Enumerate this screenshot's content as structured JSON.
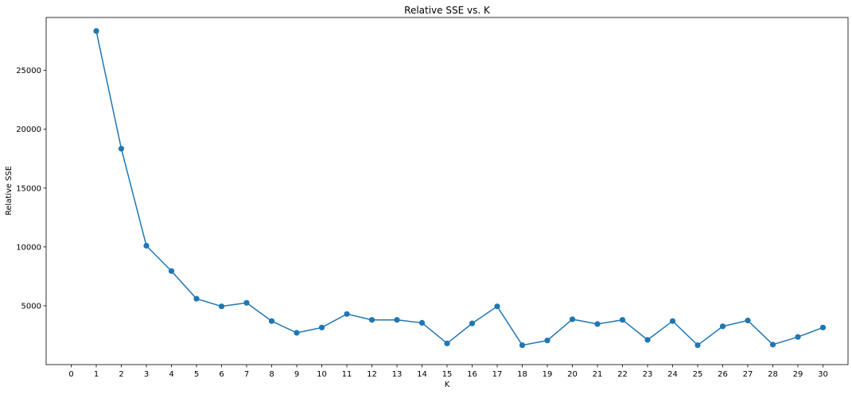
{
  "chart_data": {
    "type": "line",
    "title": "Relative SSE vs. K",
    "xlabel": "K",
    "ylabel": "Relative SSE",
    "xlim": [
      -1,
      31
    ],
    "ylim": [
      0,
      29500
    ],
    "xticks": [
      0,
      1,
      2,
      3,
      4,
      5,
      6,
      7,
      8,
      9,
      10,
      11,
      12,
      13,
      14,
      15,
      16,
      17,
      18,
      19,
      20,
      21,
      22,
      23,
      24,
      25,
      26,
      27,
      28,
      29,
      30
    ],
    "yticks": [
      5000,
      10000,
      15000,
      20000,
      25000
    ],
    "grid": false,
    "series": [
      {
        "color": "#1f77b4",
        "marker": "circle",
        "x": [
          1,
          2,
          3,
          4,
          5,
          6,
          7,
          8,
          9,
          10,
          11,
          12,
          13,
          14,
          15,
          16,
          17,
          18,
          19,
          20,
          21,
          22,
          23,
          24,
          25,
          26,
          27,
          28,
          29,
          30
        ],
        "y": [
          28350,
          18350,
          10100,
          7950,
          5600,
          4950,
          5250,
          3700,
          2700,
          3150,
          4300,
          3800,
          3800,
          3550,
          1800,
          3500,
          4950,
          1650,
          2050,
          3850,
          3450,
          3800,
          2100,
          3700,
          1650,
          3250,
          3750,
          1700,
          2350,
          3150
        ]
      }
    ]
  }
}
